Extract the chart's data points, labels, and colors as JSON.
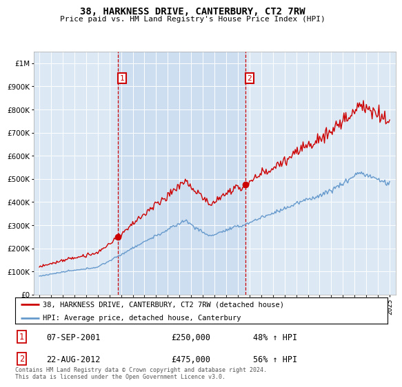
{
  "title": "38, HARKNESS DRIVE, CANTERBURY, CT2 7RW",
  "subtitle": "Price paid vs. HM Land Registry's House Price Index (HPI)",
  "bg_color": "#dce9f5",
  "sale1_date": "07-SEP-2001",
  "sale1_price": 250000,
  "sale1_x": 2001.75,
  "sale2_date": "22-AUG-2012",
  "sale2_price": 475000,
  "sale2_x": 2012.64,
  "red_line_color": "#cc0000",
  "blue_line_color": "#6699cc",
  "shade_color": "#ccddf0",
  "ylim": [
    0,
    1050000
  ],
  "xlim": [
    1994.5,
    2025.5
  ],
  "yticks": [
    0,
    100000,
    200000,
    300000,
    400000,
    500000,
    600000,
    700000,
    800000,
    900000,
    1000000
  ],
  "ytick_labels": [
    "£0",
    "£100K",
    "£200K",
    "£300K",
    "£400K",
    "£500K",
    "£600K",
    "£700K",
    "£800K",
    "£900K",
    "£1M"
  ],
  "footer": "Contains HM Land Registry data © Crown copyright and database right 2024.\nThis data is licensed under the Open Government Licence v3.0.",
  "legend_label1": "38, HARKNESS DRIVE, CANTERBURY, CT2 7RW (detached house)",
  "legend_label2": "HPI: Average price, detached house, Canterbury"
}
